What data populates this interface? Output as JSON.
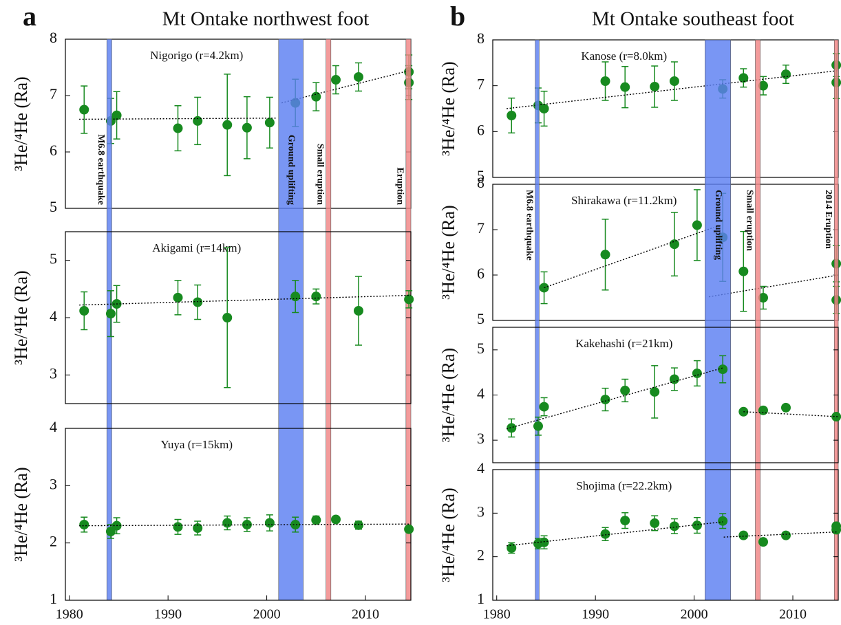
{
  "chart_data": [
    {
      "type": "scatter",
      "panel": "a",
      "title": "Mt Ontake northwest foot",
      "station": "Nigorigo (r=4.2km)",
      "ylabel": "³He/⁴He (Ra)",
      "color": "#178a1f",
      "xlim": [
        1979.6,
        2014.6
      ],
      "ylim": [
        5,
        8
      ],
      "yticks": [
        5,
        6,
        7,
        8
      ],
      "x": [
        1981.5,
        1984.2,
        1984.8,
        1991,
        1993,
        1996,
        1998,
        2000.3,
        2002.9,
        2005,
        2007,
        2009.3,
        2014.4,
        2014.4
      ],
      "values": [
        6.75,
        6.55,
        6.65,
        6.42,
        6.55,
        6.48,
        6.43,
        6.52,
        6.87,
        6.98,
        7.28,
        7.33,
        7.42,
        7.23
      ],
      "errors": [
        0.42,
        0.4,
        0.42,
        0.4,
        0.42,
        0.9,
        0.55,
        0.45,
        0.42,
        0.25,
        0.25,
        0.25,
        0.3,
        0.3
      ],
      "trends": [
        {
          "x": [
            1981,
            2001
          ],
          "y": [
            6.58,
            6.6
          ]
        },
        {
          "x": [
            2001.5,
            2014.6
          ],
          "y": [
            6.87,
            7.45
          ]
        }
      ],
      "events": [
        {
          "name": "M6.8 earthquake",
          "range": [
            1983.8,
            1984.3
          ],
          "color": "#5b7ff2"
        },
        {
          "name": "Ground uplifting",
          "range": [
            2001.2,
            2003.7
          ],
          "color": "#5b7ff2"
        },
        {
          "name": "Small eruption",
          "range": [
            2006.0,
            2006.5
          ],
          "color": "#f08585"
        },
        {
          "name": "Eruption",
          "range": [
            2014.1,
            2014.6
          ],
          "color": "#f08585"
        }
      ]
    },
    {
      "type": "scatter",
      "station": "Akigami (r=14km)",
      "ylabel": "³He/⁴He (Ra)",
      "color": "#178a1f",
      "xlim": [
        1979.6,
        2014.6
      ],
      "ylim": [
        2.5,
        5.5
      ],
      "yticks": [
        3,
        4,
        5
      ],
      "x": [
        1981.5,
        1984.2,
        1984.8,
        1991,
        1993,
        1996,
        2002.9,
        2005,
        2009.3,
        2014.4
      ],
      "values": [
        4.12,
        4.07,
        4.24,
        4.35,
        4.27,
        4.0,
        4.37,
        4.37,
        4.12,
        4.32
      ],
      "errors": [
        0.33,
        0.4,
        0.32,
        0.3,
        0.3,
        1.22,
        0.28,
        0.13,
        0.6,
        0.15
      ],
      "trends": [
        {
          "x": [
            1981,
            2014.6
          ],
          "y": [
            4.22,
            4.39
          ]
        }
      ]
    },
    {
      "type": "scatter",
      "station": "Yuya (r=15km)",
      "ylabel": "³He/⁴He (Ra)",
      "color": "#178a1f",
      "xlim": [
        1979.6,
        2014.6
      ],
      "ylim": [
        1,
        4
      ],
      "yticks": [
        1,
        2,
        3,
        4
      ],
      "xticks": [
        1980,
        1990,
        2000,
        2010
      ],
      "x": [
        1981.5,
        1984.2,
        1984.8,
        1991,
        1993,
        1996,
        1998,
        2000.3,
        2002.9,
        2005,
        2007,
        2009.3,
        2014.4
      ],
      "values": [
        2.32,
        2.2,
        2.3,
        2.28,
        2.26,
        2.35,
        2.32,
        2.35,
        2.32,
        2.4,
        2.41,
        2.31,
        2.24
      ],
      "errors": [
        0.13,
        0.12,
        0.14,
        0.13,
        0.12,
        0.12,
        0.12,
        0.14,
        0.13,
        0.07,
        0.05,
        0.07,
        0.05
      ],
      "trends": [
        {
          "x": [
            1981,
            2014.6
          ],
          "y": [
            2.3,
            2.33
          ]
        }
      ]
    },
    {
      "type": "scatter",
      "panel": "b",
      "title": "Mt Ontake southeast foot",
      "station": "Kanose (r=8.0km)",
      "ylabel": "³He/⁴He (Ra)",
      "color": "#178a1f",
      "xlim": [
        1979.6,
        2014.6
      ],
      "ylim": [
        5,
        8
      ],
      "yticks": [
        5,
        6,
        7,
        8
      ],
      "x": [
        1981.5,
        1984.2,
        1984.8,
        1991,
        1993,
        1996,
        1998,
        2002.9,
        2005,
        2007,
        2009.3,
        2014.4,
        2014.4
      ],
      "values": [
        6.35,
        6.57,
        6.5,
        7.1,
        6.97,
        6.98,
        7.1,
        6.93,
        7.17,
        7.0,
        7.25,
        7.45,
        7.07
      ],
      "errors": [
        0.38,
        0.38,
        0.38,
        0.42,
        0.45,
        0.45,
        0.42,
        0.2,
        0.2,
        0.2,
        0.2,
        0.25,
        0.35
      ],
      "trends": [
        {
          "x": [
            1981,
            2014.6
          ],
          "y": [
            6.5,
            7.33
          ]
        }
      ]
    },
    {
      "type": "scatter",
      "station": "Shirakawa (r=11.2km)",
      "ylabel": "³He/⁴He (Ra)",
      "color": "#178a1f",
      "xlim": [
        1979.6,
        2014.6
      ],
      "ylim": [
        5,
        8
      ],
      "yticks": [
        5,
        6,
        7,
        8
      ],
      "x": [
        1984.8,
        1991,
        1998,
        2000.3,
        2002.9,
        2005,
        2007,
        2014.4,
        2014.4
      ],
      "values": [
        5.72,
        6.45,
        6.68,
        7.1,
        6.83,
        6.08,
        5.5,
        6.25,
        5.45
      ],
      "errors": [
        0.35,
        0.78,
        0.7,
        0.78,
        0.97,
        0.88,
        0.25,
        0.4,
        0.3
      ],
      "trends": [
        {
          "x": [
            1984.8,
            2002
          ],
          "y": [
            5.72,
            7.05
          ]
        },
        {
          "x": [
            2001.5,
            2014.6
          ],
          "y": [
            5.52,
            6.0
          ]
        }
      ],
      "events": [
        {
          "name": "M6.8 earthquake",
          "range": [
            1983.9,
            1984.3
          ],
          "color": "#5b7ff2"
        },
        {
          "name": "Ground uplifting",
          "range": [
            2001.1,
            2003.7
          ],
          "color": "#5b7ff2"
        },
        {
          "name": "Small eruption",
          "range": [
            2006.2,
            2006.7
          ],
          "color": "#f08585"
        },
        {
          "name": "2014 Eruption",
          "range": [
            2014.2,
            2014.6
          ],
          "color": "#f08585"
        }
      ]
    },
    {
      "type": "scatter",
      "station": "Kakehashi (r=21km)",
      "ylabel": "³He/⁴He (Ra)",
      "color": "#178a1f",
      "xlim": [
        1979.6,
        2014.6
      ],
      "ylim": [
        2.5,
        5.5
      ],
      "yticks": [
        3,
        4,
        5
      ],
      "x": [
        1981.5,
        1984.2,
        1984.8,
        1991,
        1993,
        1996,
        1998,
        2000.3,
        2002.9,
        2005,
        2007,
        2009.3,
        2014.4
      ],
      "values": [
        3.27,
        3.31,
        3.74,
        3.9,
        4.1,
        4.07,
        4.35,
        4.48,
        4.57,
        3.63,
        3.66,
        3.72,
        3.52
      ],
      "errors": [
        0.2,
        0.2,
        0.2,
        0.25,
        0.25,
        0.58,
        0.25,
        0.28,
        0.3,
        0.05,
        0.05,
        0.05,
        0.05
      ],
      "trends": [
        {
          "x": [
            1981,
            2002.9
          ],
          "y": [
            3.25,
            4.6
          ]
        },
        {
          "x": [
            2005,
            2014.6
          ],
          "y": [
            3.63,
            3.52
          ]
        }
      ]
    },
    {
      "type": "scatter",
      "station": "Shojima (r=22.2km)",
      "ylabel": "³He/⁴He (Ra)",
      "color": "#178a1f",
      "xlim": [
        1979.6,
        2014.6
      ],
      "ylim": [
        1,
        4
      ],
      "yticks": [
        1,
        2,
        3,
        4
      ],
      "xticks": [
        1980,
        1990,
        2000,
        2010
      ],
      "x": [
        1981.5,
        1984.2,
        1984.8,
        1991,
        1993,
        1996,
        1998,
        2000.3,
        2002.9,
        2005,
        2007,
        2009.3,
        2014.4,
        2014.4
      ],
      "values": [
        2.2,
        2.3,
        2.33,
        2.52,
        2.83,
        2.77,
        2.7,
        2.72,
        2.82,
        2.49,
        2.34,
        2.49,
        2.7,
        2.62
      ],
      "errors": [
        0.12,
        0.12,
        0.15,
        0.15,
        0.18,
        0.17,
        0.17,
        0.18,
        0.17,
        0.05,
        0.05,
        0.05,
        0.08,
        0.08
      ],
      "trends": [
        {
          "x": [
            1981,
            2002.9
          ],
          "y": [
            2.25,
            2.8
          ]
        },
        {
          "x": [
            2003,
            2014.6
          ],
          "y": [
            2.45,
            2.57
          ]
        }
      ]
    }
  ]
}
